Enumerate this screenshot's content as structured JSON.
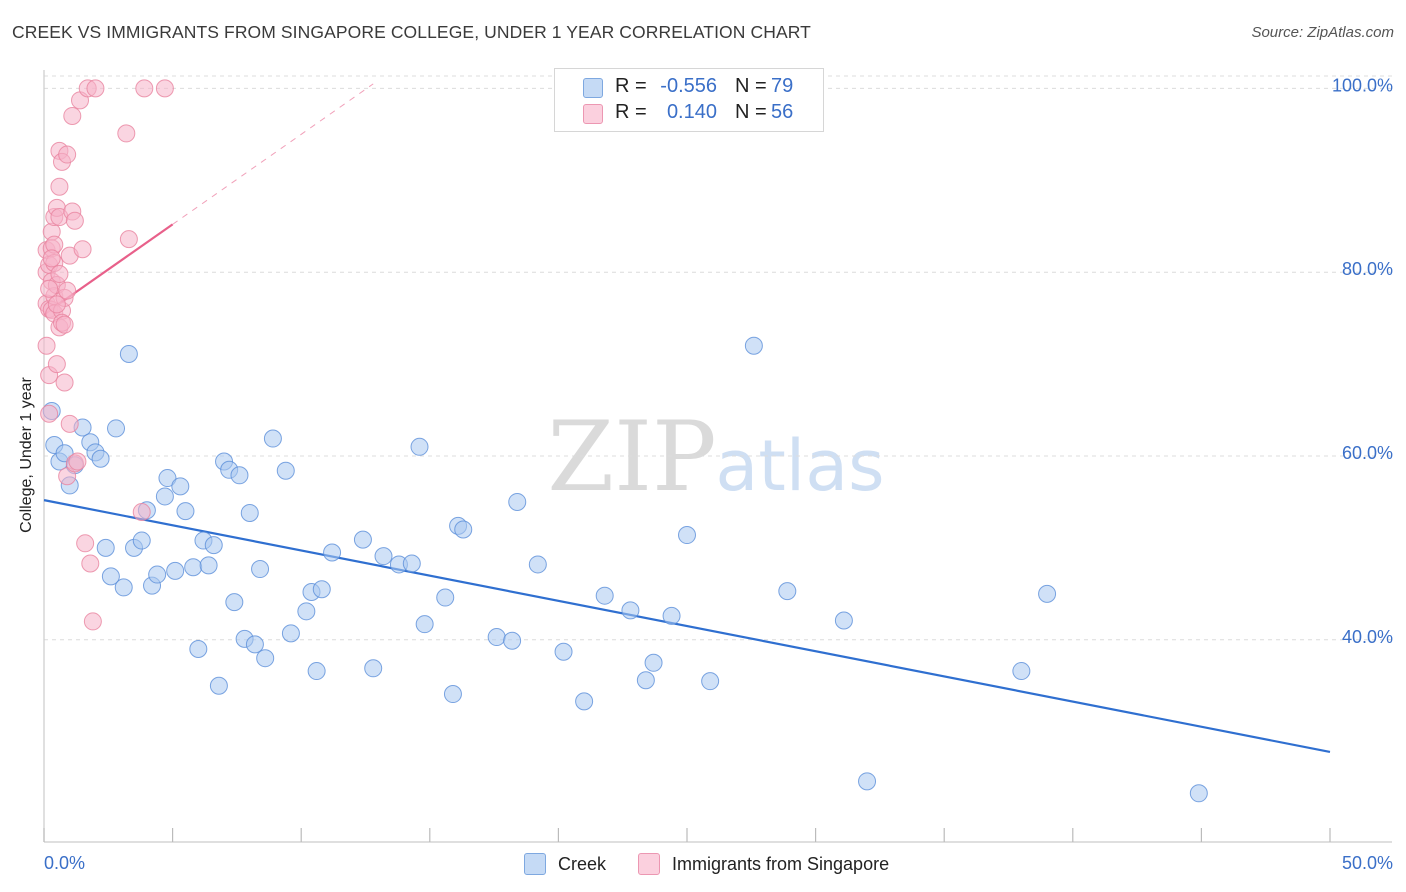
{
  "title": "CREEK VS IMMIGRANTS FROM SINGAPORE COLLEGE, UNDER 1 YEAR CORRELATION CHART",
  "source": "Source: ZipAtlas.com",
  "watermark": {
    "zip": "ZIP",
    "atlas": "atlas"
  },
  "legend_top": [
    {
      "r_label": "R =",
      "r_value": "-0.556",
      "n_label": "N =",
      "n_value": "79",
      "color": "#a9c8f0"
    },
    {
      "r_label": "R =",
      "r_value": "0.140",
      "n_label": "N =",
      "n_value": "56",
      "color": "#f6b3c8"
    }
  ],
  "legend_bottom": [
    {
      "label": "Creek",
      "color": "#a9c8f0"
    },
    {
      "label": "Immigrants from Singapore",
      "color": "#f6b3c8"
    }
  ],
  "chart_data": {
    "type": "scatter",
    "title": "CREEK VS IMMIGRANTS FROM SINGAPORE COLLEGE, UNDER 1 YEAR CORRELATION CHART",
    "xlabel": "",
    "ylabel": "College, Under 1 year",
    "xlim": [
      0,
      50
    ],
    "ylim": [
      18,
      102
    ],
    "x_tick_labels": [
      "0.0%",
      "50.0%"
    ],
    "y_ticks": [
      40,
      60,
      80,
      100
    ],
    "y_tick_labels": [
      "40.0%",
      "60.0%",
      "80.0%",
      "100.0%"
    ],
    "grid": true,
    "series": [
      {
        "name": "Creek",
        "color": "#5b8fd9",
        "fill": "#a9c8f0",
        "trend_color": "#2f6fd0",
        "trend": {
          "x0": 0,
          "y0": 55.2,
          "x1": 50,
          "y1": 27.8,
          "dash_to": 50
        },
        "points": [
          [
            0.3,
            64.9
          ],
          [
            0.4,
            61.2
          ],
          [
            0.6,
            59.4
          ],
          [
            0.8,
            60.3
          ],
          [
            1.0,
            56.8
          ],
          [
            1.2,
            59.0
          ],
          [
            1.5,
            63.1
          ],
          [
            1.8,
            61.5
          ],
          [
            2.0,
            60.4
          ],
          [
            2.2,
            59.7
          ],
          [
            2.4,
            50.0
          ],
          [
            2.6,
            46.9
          ],
          [
            2.8,
            63.0
          ],
          [
            3.1,
            45.7
          ],
          [
            3.3,
            71.1
          ],
          [
            3.5,
            50.0
          ],
          [
            3.8,
            50.8
          ],
          [
            4.0,
            54.1
          ],
          [
            4.2,
            45.9
          ],
          [
            4.4,
            47.1
          ],
          [
            4.7,
            55.6
          ],
          [
            4.8,
            57.6
          ],
          [
            5.1,
            47.5
          ],
          [
            5.3,
            56.7
          ],
          [
            5.5,
            54.0
          ],
          [
            5.8,
            47.9
          ],
          [
            6.0,
            39.0
          ],
          [
            6.2,
            50.8
          ],
          [
            6.4,
            48.1
          ],
          [
            6.6,
            50.3
          ],
          [
            6.8,
            35.0
          ],
          [
            7.0,
            59.4
          ],
          [
            7.2,
            58.5
          ],
          [
            7.4,
            44.1
          ],
          [
            7.6,
            57.9
          ],
          [
            7.8,
            40.1
          ],
          [
            8.0,
            53.8
          ],
          [
            8.2,
            39.5
          ],
          [
            8.4,
            47.7
          ],
          [
            8.6,
            38.0
          ],
          [
            8.9,
            61.9
          ],
          [
            9.4,
            58.4
          ],
          [
            9.6,
            40.7
          ],
          [
            10.2,
            43.1
          ],
          [
            10.4,
            45.2
          ],
          [
            10.6,
            36.6
          ],
          [
            10.8,
            45.5
          ],
          [
            11.2,
            49.5
          ],
          [
            12.4,
            50.9
          ],
          [
            12.8,
            36.9
          ],
          [
            13.2,
            49.1
          ],
          [
            13.8,
            48.2
          ],
          [
            14.3,
            48.3
          ],
          [
            14.6,
            61.0
          ],
          [
            14.8,
            41.7
          ],
          [
            15.6,
            44.6
          ],
          [
            15.9,
            34.1
          ],
          [
            16.1,
            52.4
          ],
          [
            16.3,
            52.0
          ],
          [
            17.6,
            40.3
          ],
          [
            18.2,
            39.9
          ],
          [
            18.4,
            55.0
          ],
          [
            19.2,
            48.2
          ],
          [
            20.2,
            38.7
          ],
          [
            21.0,
            33.3
          ],
          [
            21.8,
            44.8
          ],
          [
            22.8,
            43.2
          ],
          [
            23.4,
            35.6
          ],
          [
            23.7,
            37.5
          ],
          [
            24.4,
            42.6
          ],
          [
            25.0,
            51.4
          ],
          [
            25.9,
            35.5
          ],
          [
            27.6,
            72.0
          ],
          [
            28.9,
            45.3
          ],
          [
            31.1,
            42.1
          ],
          [
            32.0,
            24.6
          ],
          [
            39.0,
            45.0
          ],
          [
            38.0,
            36.6
          ],
          [
            44.9,
            23.3
          ]
        ]
      },
      {
        "name": "Immigrants from Singapore",
        "color": "#e8839f",
        "fill": "#f6b3c8",
        "trend_color": "#e8608a",
        "trend": {
          "x0": 0,
          "y0": 75.4,
          "x1": 5.0,
          "y1": 85.2,
          "dash_to": 12.8
        },
        "points": [
          [
            0.1,
            82.4
          ],
          [
            0.1,
            80.0
          ],
          [
            0.1,
            76.6
          ],
          [
            0.1,
            72.0
          ],
          [
            0.2,
            68.8
          ],
          [
            0.2,
            64.6
          ],
          [
            0.2,
            80.8
          ],
          [
            0.2,
            76.0
          ],
          [
            0.3,
            84.4
          ],
          [
            0.3,
            82.6
          ],
          [
            0.3,
            79.0
          ],
          [
            0.3,
            75.9
          ],
          [
            0.4,
            86.0
          ],
          [
            0.4,
            83.0
          ],
          [
            0.4,
            81.0
          ],
          [
            0.4,
            77.4
          ],
          [
            0.4,
            75.5
          ],
          [
            0.5,
            87.0
          ],
          [
            0.5,
            78.6
          ],
          [
            0.5,
            70.0
          ],
          [
            0.6,
            93.2
          ],
          [
            0.6,
            89.3
          ],
          [
            0.6,
            86.0
          ],
          [
            0.6,
            74.0
          ],
          [
            0.7,
            92.0
          ],
          [
            0.7,
            75.8
          ],
          [
            0.7,
            74.5
          ],
          [
            0.8,
            77.2
          ],
          [
            0.8,
            68.0
          ],
          [
            0.9,
            92.8
          ],
          [
            0.9,
            78.0
          ],
          [
            0.9,
            57.8
          ],
          [
            1.0,
            81.8
          ],
          [
            1.0,
            63.5
          ],
          [
            1.1,
            97.0
          ],
          [
            1.1,
            86.6
          ],
          [
            1.2,
            85.6
          ],
          [
            1.2,
            59.2
          ],
          [
            1.3,
            59.4
          ],
          [
            1.4,
            98.7
          ],
          [
            1.5,
            82.5
          ],
          [
            1.6,
            50.5
          ],
          [
            1.7,
            100.0
          ],
          [
            1.8,
            48.3
          ],
          [
            1.9,
            42.0
          ],
          [
            2.0,
            100.0
          ],
          [
            3.2,
            95.1
          ],
          [
            3.3,
            83.6
          ],
          [
            3.8,
            53.9
          ],
          [
            3.9,
            100.0
          ],
          [
            4.7,
            100.0
          ],
          [
            0.3,
            81.5
          ],
          [
            0.5,
            76.5
          ],
          [
            0.8,
            74.3
          ],
          [
            0.2,
            78.2
          ],
          [
            0.6,
            79.8
          ]
        ]
      }
    ]
  }
}
